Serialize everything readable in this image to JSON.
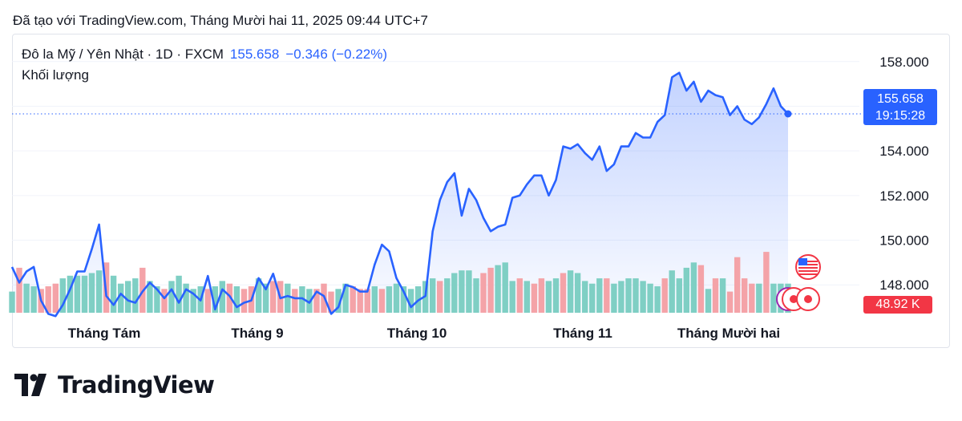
{
  "caption": "Đã tạo với TradingView.com, Tháng Mười hai 11, 2025 09:44 UTC+7",
  "legend": {
    "symbol": "Đô la Mỹ / Yên Nhật · 1D · FXCM",
    "price": "155.658",
    "change": "−0.346 (−0.22%)",
    "volume_label": "Khối lượng"
  },
  "price_tag": {
    "price": "155.658",
    "countdown": "19:15:28"
  },
  "volume_tag": "48.92 K",
  "brand": "TradingView",
  "colors": {
    "line": "#2962ff",
    "up_volume": "#7fcfc4",
    "down_volume": "#f4a3a8",
    "price_tag": "#2962ff",
    "volume_tag": "#f23645",
    "grid": "#f0f3fa"
  },
  "icons": [
    "us-flag-icon",
    "event-marker-icon",
    "tradingview-logo-icon"
  ],
  "chart_data": {
    "type": "area",
    "x_labels": [
      "Tháng Tám",
      "Tháng 9",
      "Tháng 10",
      "Tháng 11",
      "Tháng Mười hai"
    ],
    "y_ticks": [
      "158.000",
      "156.000",
      "154.000",
      "152.000",
      "150.000",
      "148.000"
    ],
    "ylim": [
      146.75,
      159.25
    ],
    "last_price": 155.658,
    "grid": true,
    "price": [
      148.8,
      148.1,
      148.6,
      148.8,
      147.3,
      146.7,
      146.6,
      147.1,
      147.8,
      148.6,
      148.6,
      149.6,
      150.7,
      147.5,
      147.1,
      147.6,
      147.3,
      147.2,
      147.7,
      148.1,
      147.8,
      147.4,
      147.8,
      147.2,
      147.8,
      147.6,
      147.3,
      148.4,
      146.9,
      147.8,
      147.5,
      147.0,
      147.2,
      147.3,
      148.3,
      147.8,
      148.5,
      147.4,
      147.5,
      147.4,
      147.4,
      147.2,
      147.7,
      147.5,
      146.7,
      147.0,
      148.0,
      147.9,
      147.7,
      147.7,
      148.9,
      149.8,
      149.5,
      148.3,
      147.7,
      147.0,
      147.3,
      147.5,
      150.4,
      151.8,
      152.6,
      153.0,
      151.1,
      152.3,
      151.8,
      151.0,
      150.4,
      150.6,
      150.7,
      151.9,
      152.0,
      152.5,
      152.9,
      152.9,
      152.0,
      152.7,
      154.2,
      154.1,
      154.3,
      153.9,
      153.6,
      154.2,
      153.1,
      153.4,
      154.2,
      154.2,
      154.8,
      154.6,
      154.6,
      155.3,
      155.6,
      157.3,
      157.5,
      156.7,
      157.1,
      156.2,
      156.7,
      156.5,
      156.4,
      155.6,
      156.0,
      155.4,
      155.2,
      155.5,
      156.1,
      156.8,
      156.0,
      155.658
    ],
    "volume": [
      [
        8,
        "u"
      ],
      [
        17,
        "d"
      ],
      [
        11,
        "u"
      ],
      [
        10,
        "u"
      ],
      [
        9,
        "d"
      ],
      [
        10,
        "d"
      ],
      [
        11,
        "d"
      ],
      [
        13,
        "u"
      ],
      [
        14,
        "u"
      ],
      [
        14,
        "u"
      ],
      [
        14,
        "u"
      ],
      [
        15,
        "u"
      ],
      [
        16,
        "u"
      ],
      [
        19,
        "d"
      ],
      [
        14,
        "u"
      ],
      [
        11,
        "u"
      ],
      [
        12,
        "u"
      ],
      [
        13,
        "u"
      ],
      [
        17,
        "d"
      ],
      [
        12,
        "u"
      ],
      [
        10,
        "u"
      ],
      [
        9,
        "d"
      ],
      [
        12,
        "u"
      ],
      [
        14,
        "u"
      ],
      [
        11,
        "u"
      ],
      [
        9,
        "u"
      ],
      [
        10,
        "u"
      ],
      [
        9,
        "d"
      ],
      [
        10,
        "u"
      ],
      [
        12,
        "u"
      ],
      [
        11,
        "d"
      ],
      [
        10,
        "u"
      ],
      [
        9,
        "d"
      ],
      [
        10,
        "d"
      ],
      [
        13,
        "u"
      ],
      [
        11,
        "u"
      ],
      [
        12,
        "d"
      ],
      [
        12,
        "d"
      ],
      [
        11,
        "u"
      ],
      [
        9,
        "d"
      ],
      [
        10,
        "u"
      ],
      [
        9,
        "u"
      ],
      [
        9,
        "d"
      ],
      [
        11,
        "d"
      ],
      [
        8,
        "d"
      ],
      [
        9,
        "u"
      ],
      [
        11,
        "u"
      ],
      [
        10,
        "d"
      ],
      [
        9,
        "d"
      ],
      [
        9,
        "d"
      ],
      [
        10,
        "u"
      ],
      [
        9,
        "d"
      ],
      [
        10,
        "u"
      ],
      [
        11,
        "u"
      ],
      [
        10,
        "u"
      ],
      [
        9,
        "u"
      ],
      [
        10,
        "u"
      ],
      [
        12,
        "u"
      ],
      [
        13,
        "u"
      ],
      [
        12,
        "d"
      ],
      [
        13,
        "u"
      ],
      [
        15,
        "u"
      ],
      [
        16,
        "u"
      ],
      [
        16,
        "u"
      ],
      [
        13,
        "u"
      ],
      [
        15,
        "d"
      ],
      [
        17,
        "d"
      ],
      [
        18,
        "u"
      ],
      [
        19,
        "u"
      ],
      [
        12,
        "u"
      ],
      [
        13,
        "d"
      ],
      [
        12,
        "u"
      ],
      [
        11,
        "d"
      ],
      [
        13,
        "d"
      ],
      [
        12,
        "u"
      ],
      [
        13,
        "u"
      ],
      [
        15,
        "d"
      ],
      [
        16,
        "u"
      ],
      [
        15,
        "u"
      ],
      [
        12,
        "u"
      ],
      [
        11,
        "u"
      ],
      [
        13,
        "u"
      ],
      [
        13,
        "d"
      ],
      [
        11,
        "u"
      ],
      [
        12,
        "u"
      ],
      [
        13,
        "u"
      ],
      [
        13,
        "u"
      ],
      [
        12,
        "u"
      ],
      [
        11,
        "u"
      ],
      [
        10,
        "u"
      ],
      [
        13,
        "d"
      ],
      [
        16,
        "u"
      ],
      [
        13,
        "u"
      ],
      [
        17,
        "u"
      ],
      [
        19,
        "u"
      ],
      [
        18,
        "d"
      ],
      [
        9,
        "u"
      ],
      [
        13,
        "d"
      ],
      [
        13,
        "u"
      ],
      [
        8,
        "d"
      ],
      [
        21,
        "d"
      ],
      [
        13,
        "d"
      ],
      [
        11,
        "d"
      ],
      [
        11,
        "u"
      ],
      [
        23,
        "d"
      ],
      [
        11,
        "u"
      ],
      [
        11,
        "u"
      ],
      [
        11,
        "u"
      ]
    ]
  }
}
